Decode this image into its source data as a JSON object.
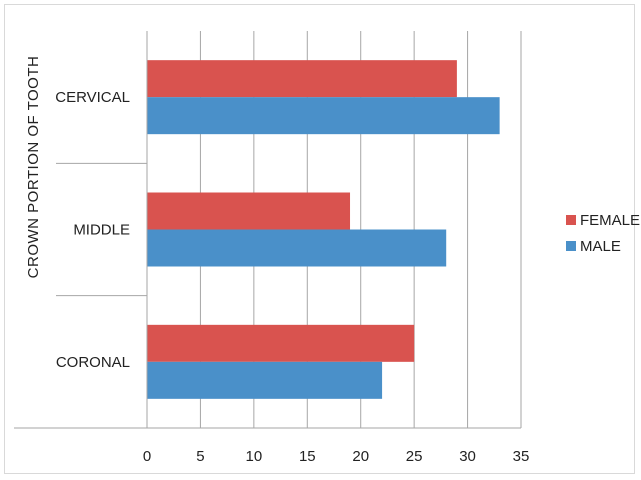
{
  "chart_data": {
    "type": "bar",
    "orientation": "horizontal",
    "title": "",
    "xlabel": "",
    "ylabel": "CROWN PORTION OF TOOTH",
    "categories": [
      "CERVICAL",
      "MIDDLE",
      "CORONAL"
    ],
    "series": [
      {
        "name": "FEMALE",
        "color": "#d9534f",
        "values": [
          29,
          19,
          25
        ]
      },
      {
        "name": "MALE",
        "color": "#4a90c9",
        "values": [
          33,
          28,
          22
        ]
      }
    ],
    "xlim": [
      0,
      35
    ],
    "xticks": [
      "0",
      "5",
      "10",
      "15",
      "20",
      "25",
      "30",
      "35"
    ],
    "grid": "vertical",
    "legend_position": "right"
  }
}
